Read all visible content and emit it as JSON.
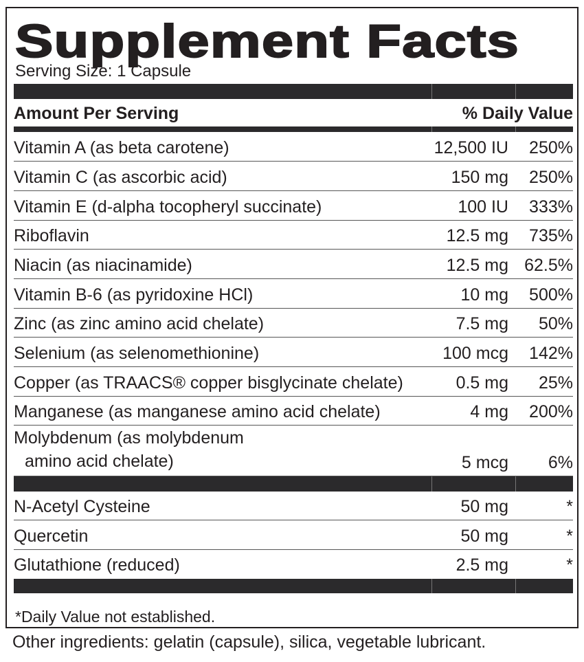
{
  "title": "Supplement Facts",
  "serving_size": "Serving Size: 1 Capsule",
  "header": {
    "amount_label": "Amount Per Serving",
    "dv_label": "% Daily Value"
  },
  "nutrients": [
    {
      "name": "Vitamin A (as beta carotene)",
      "amount": "12,500 IU",
      "dv": "250%"
    },
    {
      "name": "Vitamin C (as ascorbic acid)",
      "amount": "150 mg",
      "dv": "250%"
    },
    {
      "name": "Vitamin E (d-alpha tocopheryl succinate)",
      "amount": "100 IU",
      "dv": "333%"
    },
    {
      "name": "Riboflavin",
      "amount": "12.5 mg",
      "dv": "735%"
    },
    {
      "name": "Niacin (as niacinamide)",
      "amount": "12.5 mg",
      "dv": "62.5%"
    },
    {
      "name": "Vitamin B-6 (as pyridoxine HCl)",
      "amount": "10 mg",
      "dv": "500%"
    },
    {
      "name": "Zinc (as zinc amino acid chelate)",
      "amount": "7.5 mg",
      "dv": "50%"
    },
    {
      "name": "Selenium (as selenomethionine)",
      "amount": "100 mcg",
      "dv": "142%"
    },
    {
      "name": "Copper (as TRAACS® copper bisglycinate chelate)",
      "amount": "0.5 mg",
      "dv": "25%"
    },
    {
      "name": "Manganese (as manganese amino acid chelate)",
      "amount": "4 mg",
      "dv": "200%"
    }
  ],
  "molybdenum": {
    "line1": "Molybdenum (as molybdenum",
    "line2": "amino acid chelate)",
    "amount": "5 mcg",
    "dv": "6%"
  },
  "others": [
    {
      "name": "N-Acetyl Cysteine",
      "amount": "50 mg",
      "dv": "*"
    },
    {
      "name": "Quercetin",
      "amount": "50 mg",
      "dv": "*"
    },
    {
      "name": "Glutathione (reduced)",
      "amount": "2.5 mg",
      "dv": "*"
    }
  ],
  "footnote": "*Daily Value not established.",
  "other_ingredients": "Other ingredients: gelatin (capsule), silica, vegetable lubricant."
}
